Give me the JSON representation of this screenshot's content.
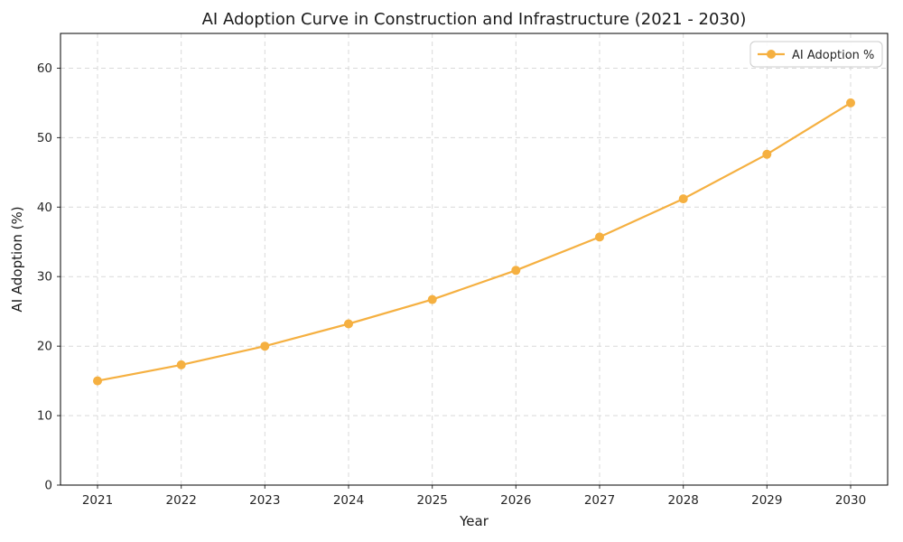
{
  "chart_data": {
    "type": "line",
    "title": "AI Adoption Curve in Construction and Infrastructure (2021 - 2030)",
    "xlabel": "Year",
    "ylabel": "AI Adoption (%)",
    "x": [
      2021,
      2022,
      2023,
      2024,
      2025,
      2026,
      2027,
      2028,
      2029,
      2030
    ],
    "series": [
      {
        "name": "AI Adoption %",
        "values": [
          15.0,
          17.3,
          20.0,
          23.2,
          26.7,
          30.9,
          35.7,
          41.2,
          47.6,
          55.0
        ],
        "color": "#F5B041",
        "marker": "circle"
      }
    ],
    "ylim": [
      0,
      65
    ],
    "yticks": [
      0,
      10,
      20,
      30,
      40,
      50,
      60
    ],
    "grid": true,
    "grid_style": "dashed",
    "legend_position": "upper right"
  }
}
